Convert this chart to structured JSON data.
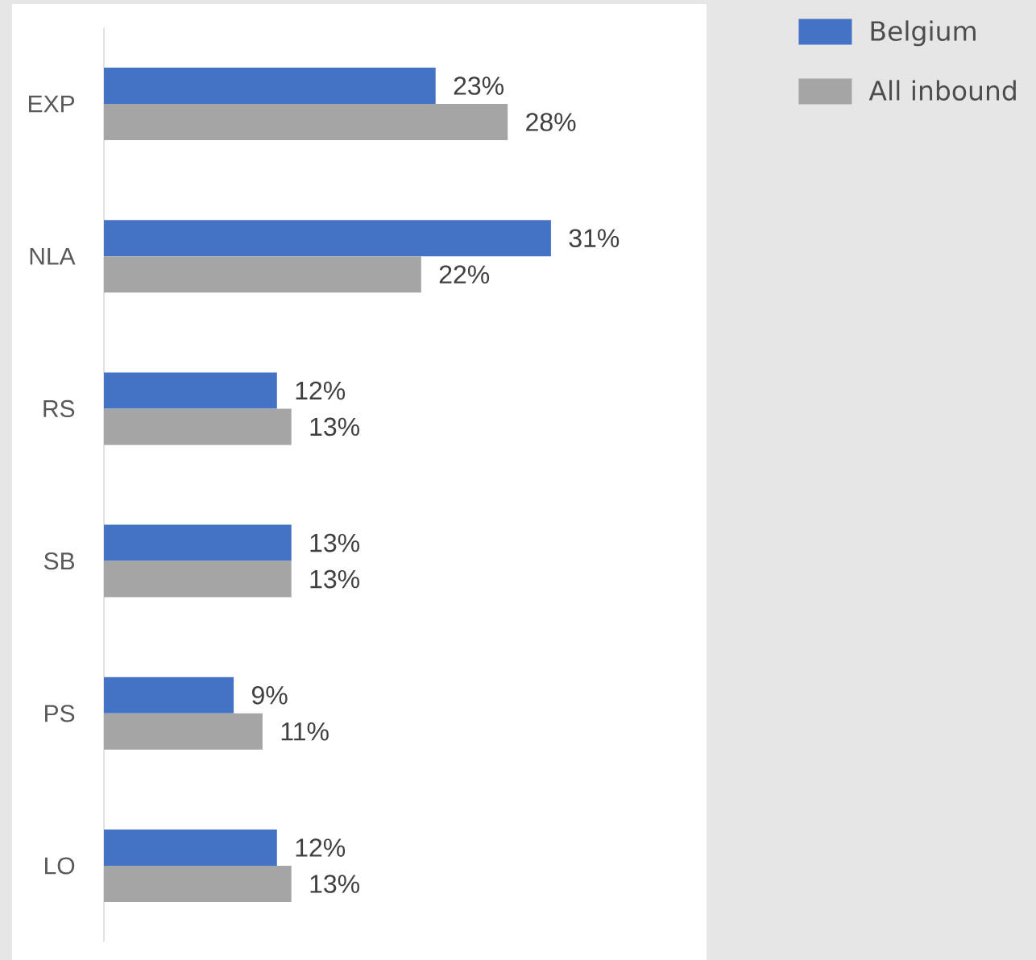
{
  "chart_data": {
    "type": "bar",
    "orientation": "horizontal",
    "categories": [
      "EXP",
      "NLA",
      "RS",
      "SB",
      "PS",
      "LO"
    ],
    "series": [
      {
        "name": "Belgium",
        "color": "#4472c4",
        "values": [
          23,
          31,
          12,
          13,
          9,
          12
        ],
        "value_labels": [
          "23%",
          "31%",
          "12%",
          "13%",
          "9%",
          "12%"
        ]
      },
      {
        "name": "All inbound",
        "color": "#a5a5a5",
        "values": [
          28,
          22,
          13,
          13,
          11,
          13
        ],
        "value_labels": [
          "28%",
          "22%",
          "13%",
          "13%",
          "11%",
          "13%"
        ]
      }
    ],
    "legend": "top right",
    "tick_labels": "y"
  }
}
